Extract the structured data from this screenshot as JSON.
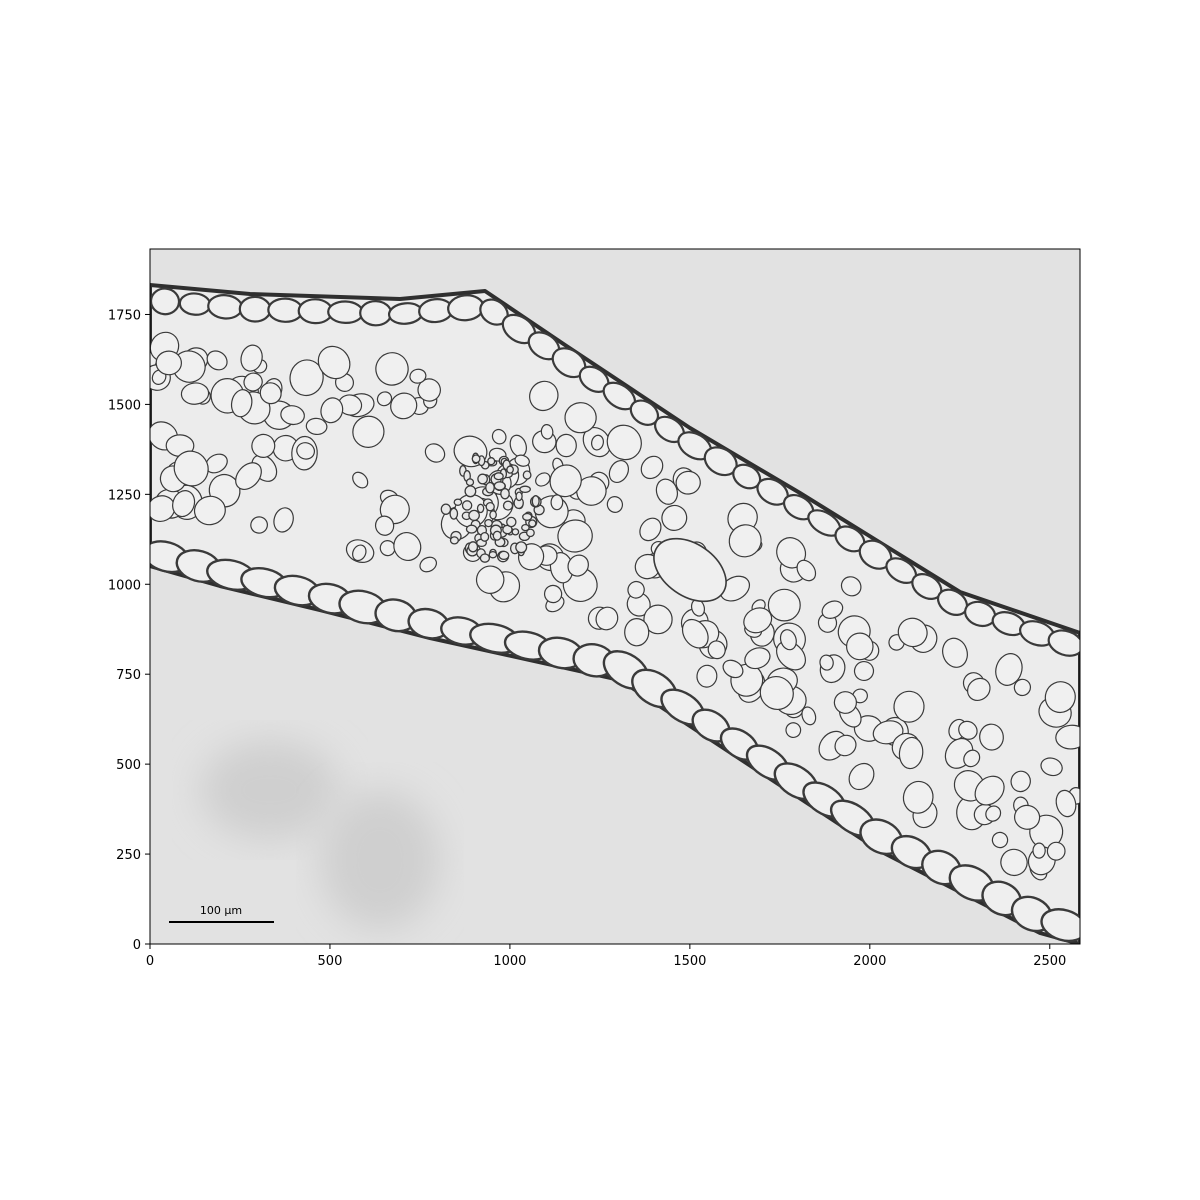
{
  "image": {
    "subject": "micrograph",
    "x_ticks": [
      "0",
      "500",
      "1000",
      "1500",
      "2000",
      "2500"
    ],
    "y_ticks": [
      "0",
      "250",
      "500",
      "750",
      "1000",
      "1250",
      "1500",
      "1750"
    ],
    "x_range": [
      0,
      2584
    ],
    "y_range": [
      1932,
      0
    ],
    "scale_bar": {
      "label": "100 µm"
    },
    "colors": {
      "background": "#e2e2e2",
      "tissue": "#ececec",
      "cell_wall": "#3a3a3a",
      "frame": "#000000"
    }
  }
}
